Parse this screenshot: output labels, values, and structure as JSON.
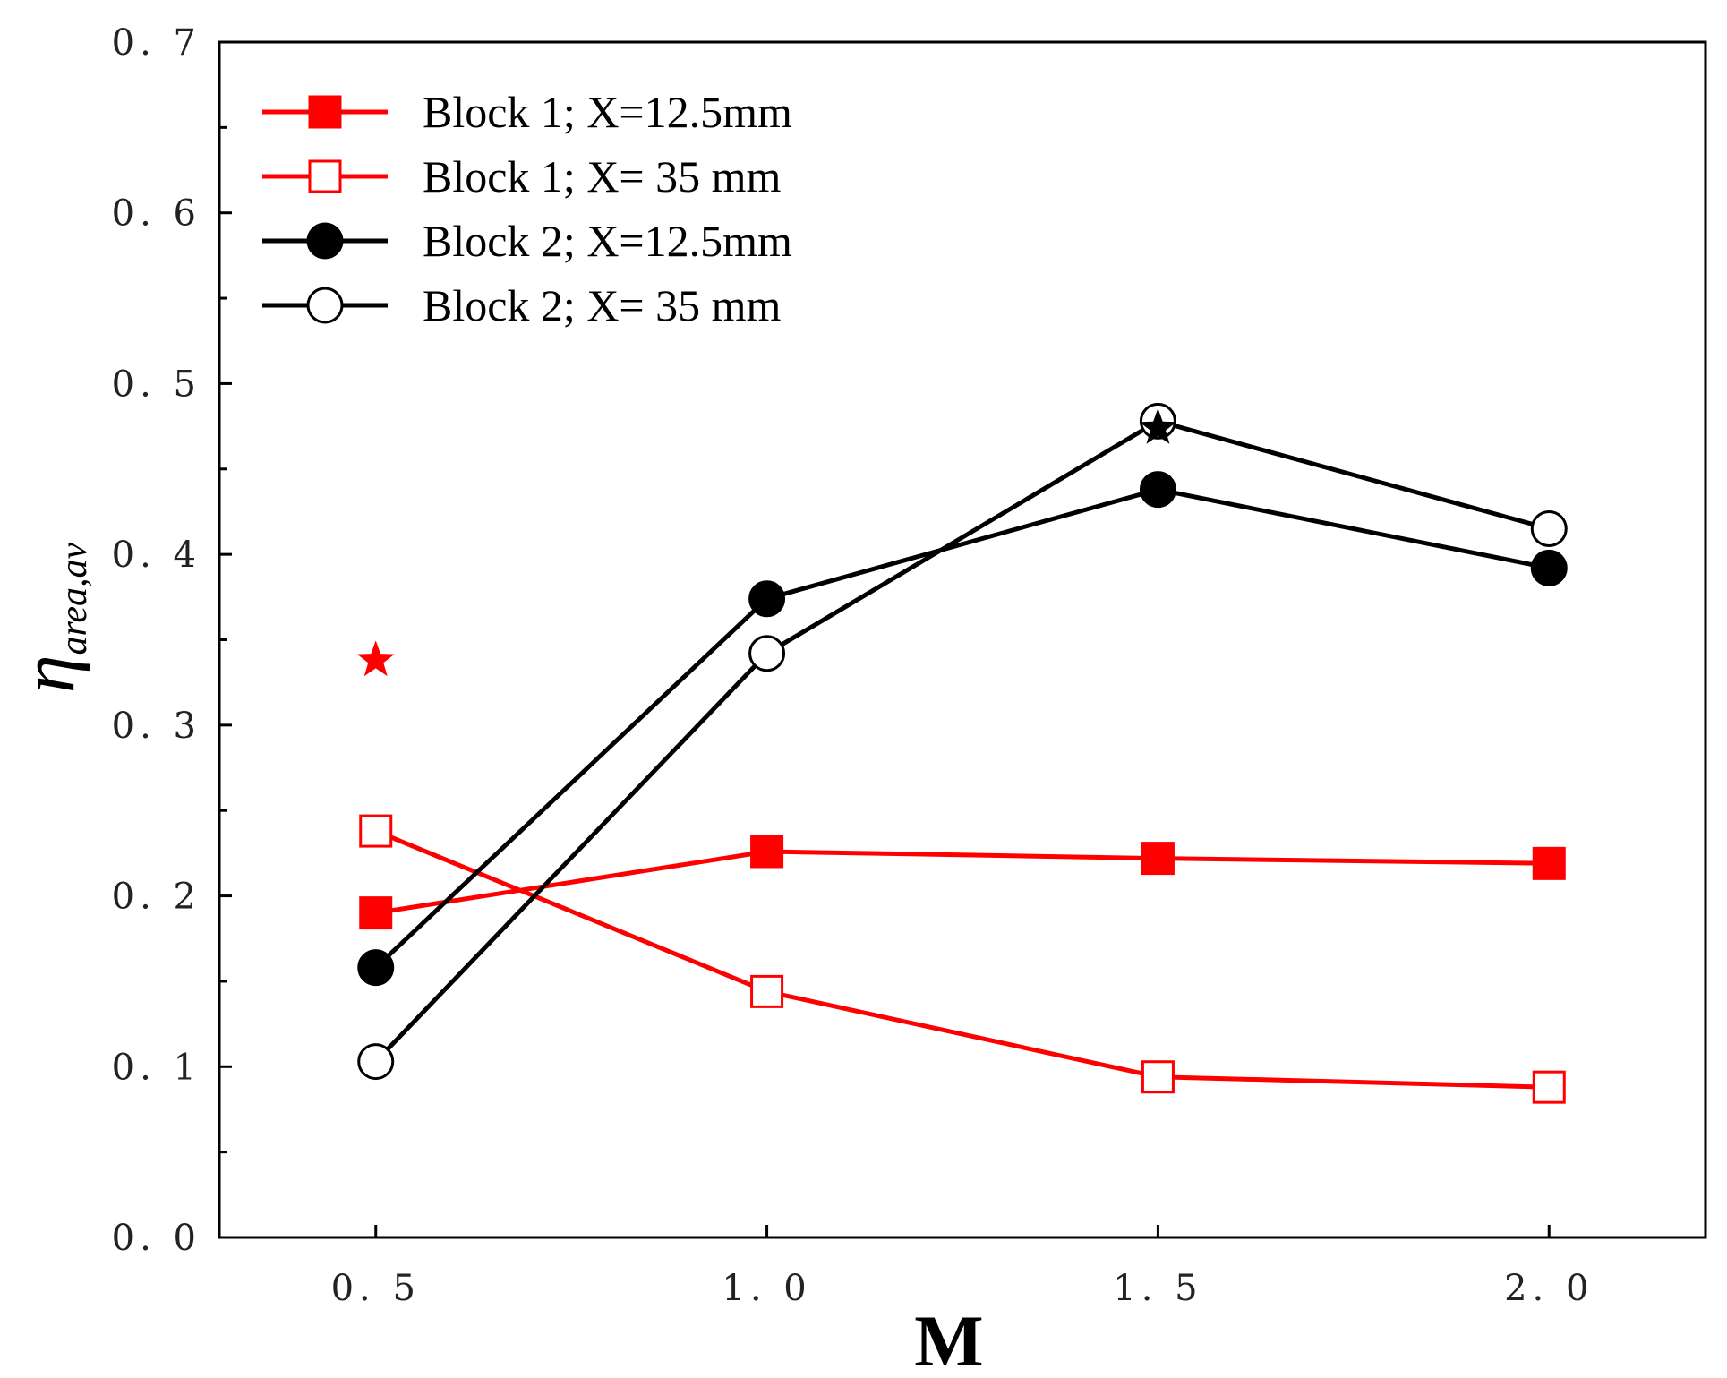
{
  "chart_data": {
    "type": "line",
    "title": "",
    "xlabel": "M",
    "ylabel_main": "η",
    "ylabel_sub": "area,av",
    "x": [
      0.5,
      1.0,
      1.5,
      2.0
    ],
    "x_tick_labels": [
      "0. 5",
      "1. 0",
      "1. 5",
      "2. 0"
    ],
    "y_tick_values": [
      0.0,
      0.1,
      0.2,
      0.3,
      0.4,
      0.5,
      0.6,
      0.7
    ],
    "y_tick_labels": [
      "0. 0",
      "0. 1",
      "0. 2",
      "0. 3",
      "0. 4",
      "0. 5",
      "0. 6",
      "0. 7"
    ],
    "xlim": [
      0.3,
      2.2
    ],
    "ylim": [
      0.0,
      0.7
    ],
    "grid": false,
    "legend_position": "top-left",
    "series": [
      {
        "name": "Block 1; X=12.5mm",
        "color": "#ff0000",
        "marker": "square-filled",
        "values": [
          0.19,
          0.226,
          0.222,
          0.219
        ]
      },
      {
        "name": "Block 1; X= 35 mm",
        "color": "#ff0000",
        "marker": "square-open",
        "values": [
          0.238,
          0.144,
          0.094,
          0.088
        ]
      },
      {
        "name": "Block 2; X=12.5mm",
        "color": "#000000",
        "marker": "circle-filled",
        "values": [
          0.158,
          0.374,
          0.438,
          0.392
        ]
      },
      {
        "name": "Block 2; X= 35 mm",
        "color": "#000000",
        "marker": "circle-open",
        "values": [
          0.103,
          0.342,
          0.478,
          0.415
        ]
      }
    ],
    "annotations": [
      {
        "marker": "star",
        "color": "#ff0000",
        "x": 0.5,
        "y": 0.338
      },
      {
        "marker": "star",
        "color": "#000000",
        "x": 1.5,
        "y": 0.474
      }
    ]
  }
}
